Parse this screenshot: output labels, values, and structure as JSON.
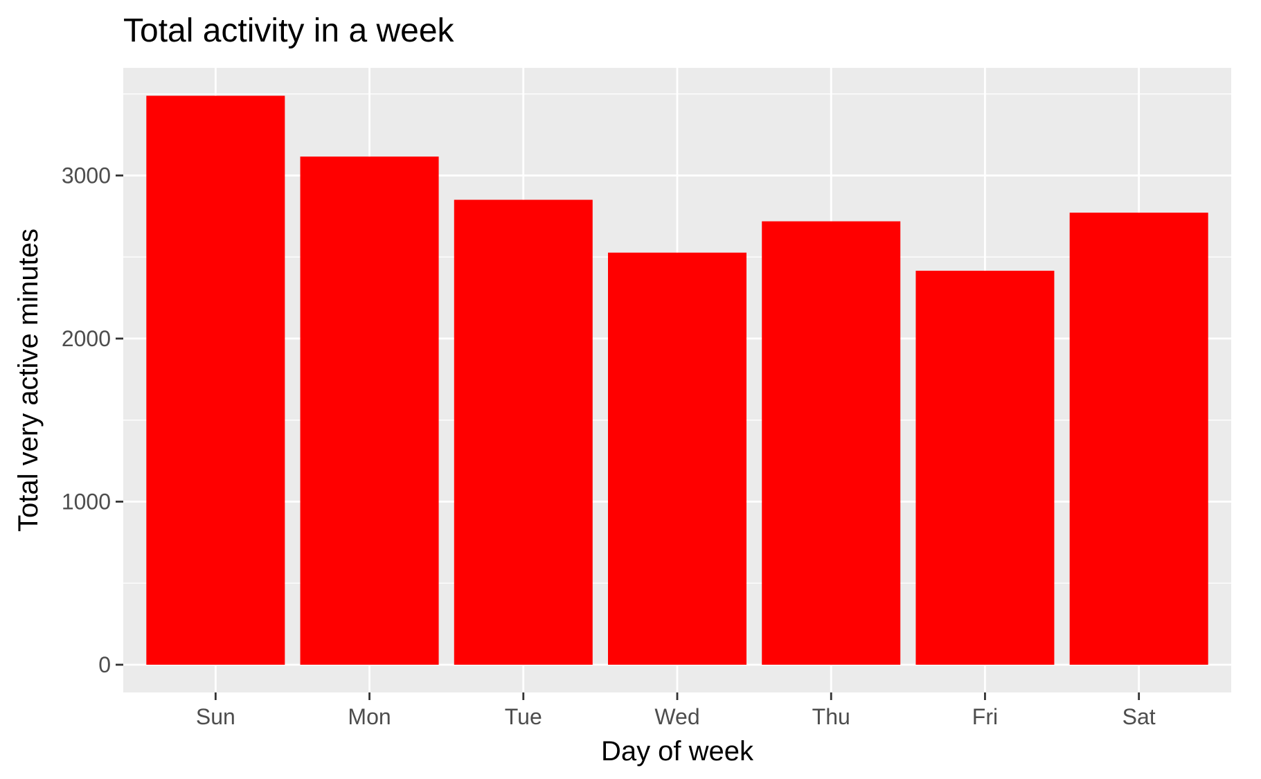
{
  "chart_data": {
    "type": "bar",
    "title": "Total activity in a week",
    "xlabel": "Day of week",
    "ylabel": "Total very active minutes",
    "categories": [
      "Sun",
      "Mon",
      "Tue",
      "Wed",
      "Thu",
      "Fri",
      "Sat"
    ],
    "values": [
      3489,
      3116,
      2851,
      2527,
      2719,
      2416,
      2772
    ],
    "ylim": [
      -170,
      3660
    ],
    "yticks": [
      0,
      1000,
      2000,
      3000
    ],
    "grid": true,
    "legend": "none",
    "colors": {
      "bar": "#ff0000",
      "panel": "#ebebeb",
      "grid": "#ffffff",
      "tick": "#333333",
      "tick_label": "#4d4d4d"
    }
  }
}
